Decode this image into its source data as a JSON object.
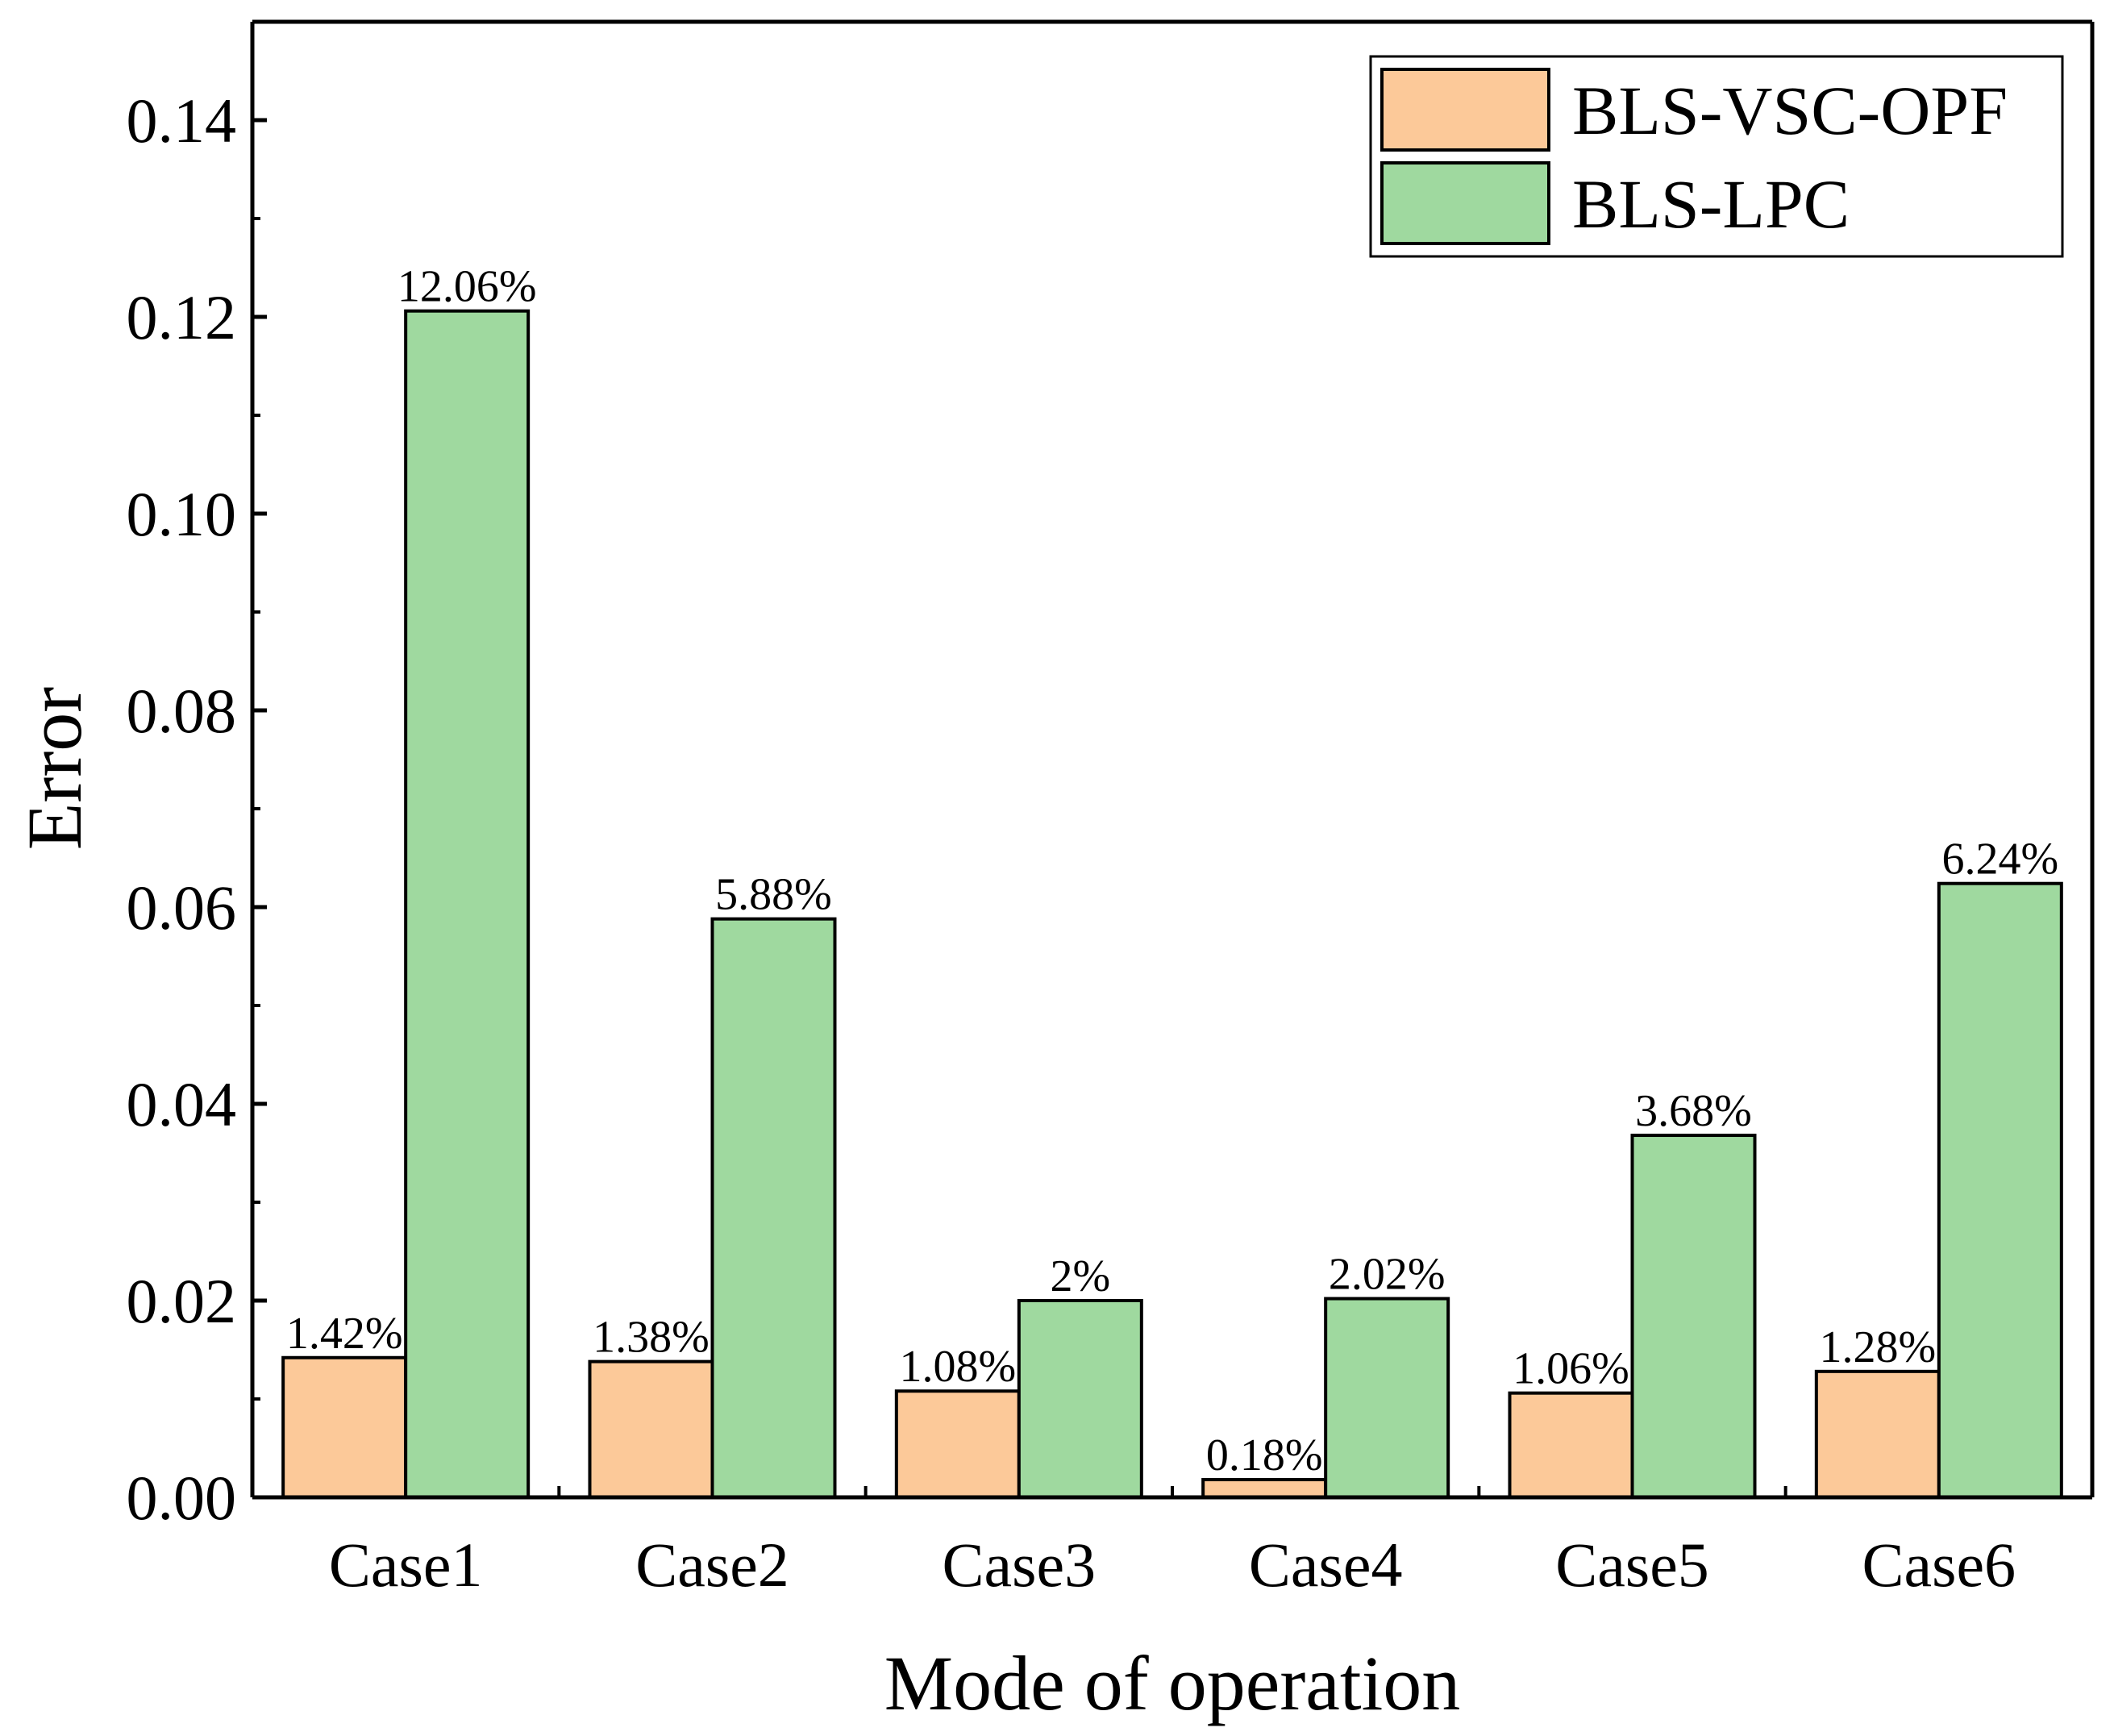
{
  "chart_data": {
    "type": "bar",
    "title": "",
    "xlabel": "Mode of operation",
    "ylabel": "Error",
    "ylim": [
      0,
      0.15
    ],
    "yticks": [
      "0.00",
      "0.02",
      "0.04",
      "0.06",
      "0.08",
      "0.10",
      "0.12",
      "0.14"
    ],
    "categories": [
      "Case1",
      "Case2",
      "Case3",
      "Case4",
      "Case5",
      "Case6"
    ],
    "legend_position": "top-right",
    "grid": false,
    "series": [
      {
        "name": "BLS-VSC-OPF",
        "color": "#fcc999",
        "values": [
          0.0142,
          0.0138,
          0.0108,
          0.0018,
          0.0106,
          0.0128
        ],
        "labels": [
          "1.42%",
          "1.38%",
          "1.08%",
          "0.18%",
          "1.06%",
          "1.28%"
        ]
      },
      {
        "name": "BLS-LPC",
        "color": "#9fd99f",
        "values": [
          0.1206,
          0.0588,
          0.02,
          0.0202,
          0.0368,
          0.0624
        ],
        "labels": [
          "12.06%",
          "5.88%",
          "2%",
          "2.02%",
          "3.68%",
          "6.24%"
        ]
      }
    ]
  }
}
